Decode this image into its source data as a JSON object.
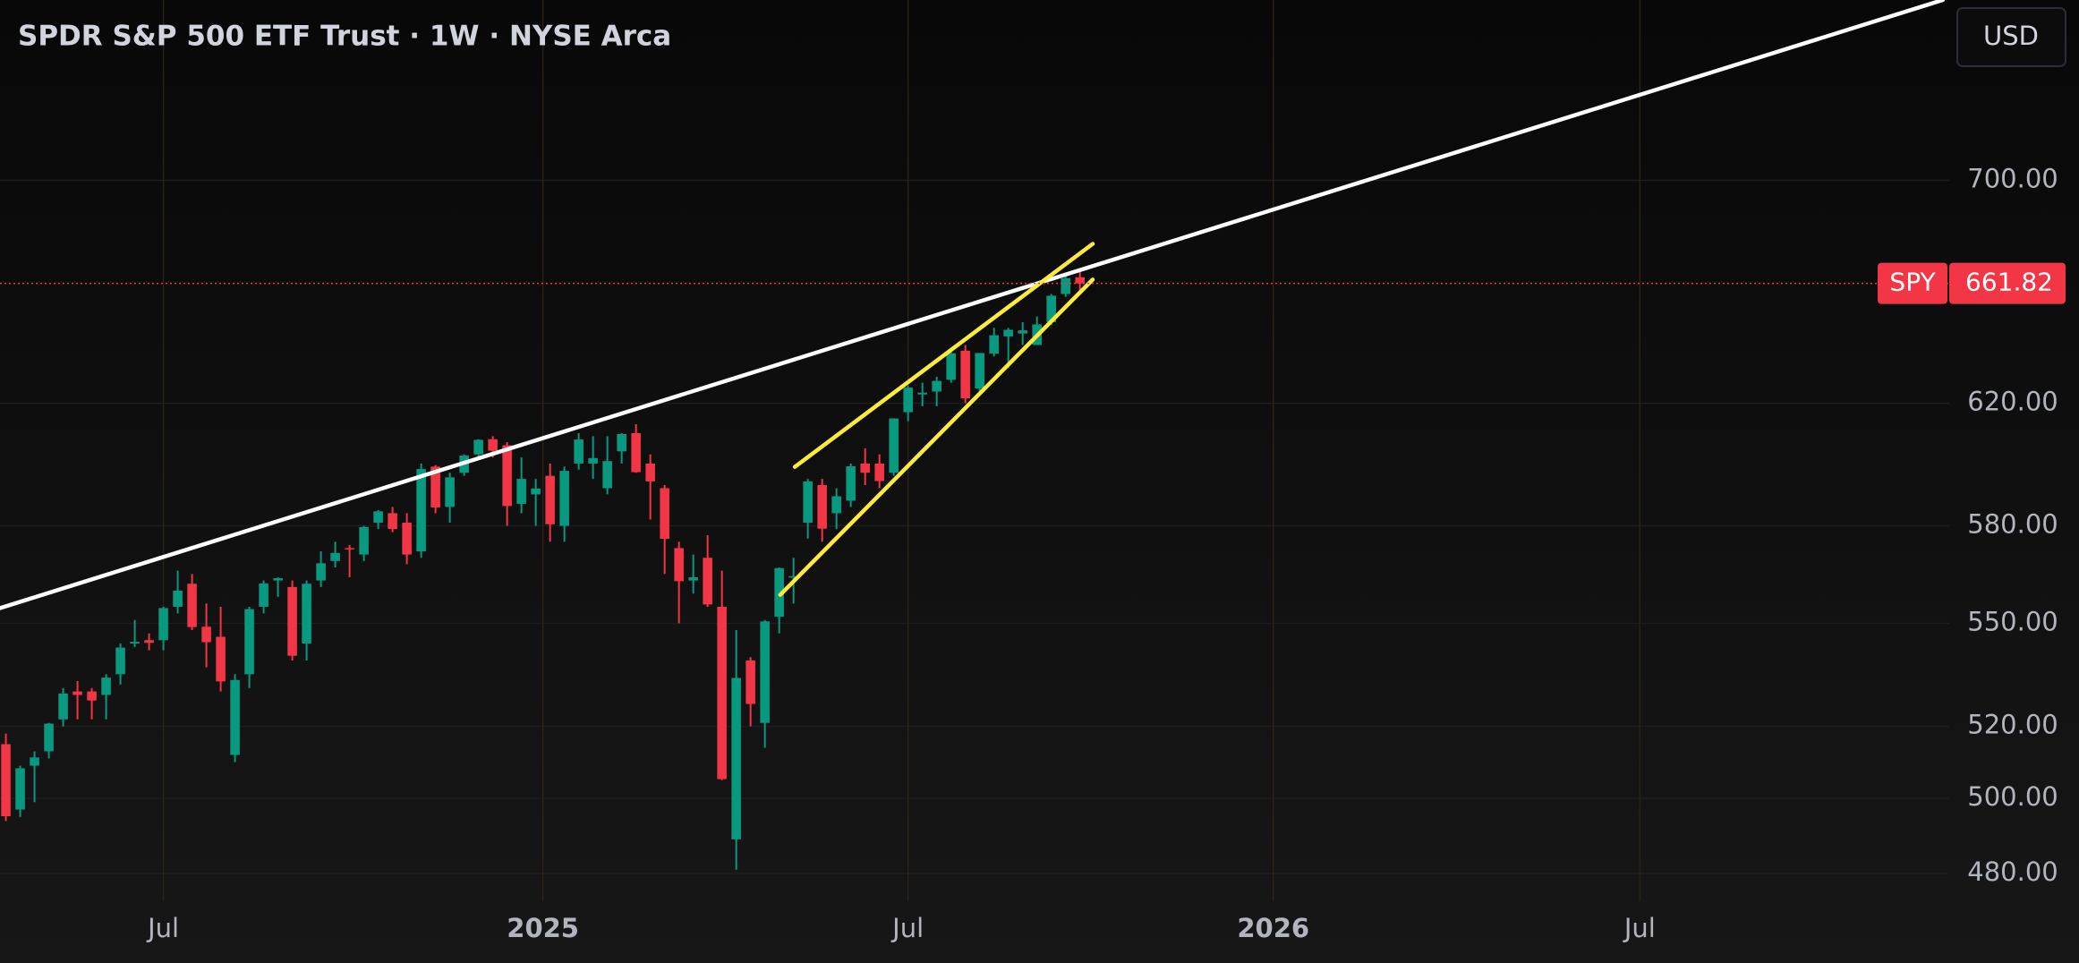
{
  "chart_data": {
    "type": "candlestick",
    "title": "SPDR S&P 500 ETF Trust · 1W · NYSE Arca",
    "currency": "USD",
    "log_scale": true,
    "grid": true,
    "colors": {
      "up": "#089981",
      "down": "#f23645"
    },
    "open": [
      515,
      497,
      509,
      513,
      522,
      530,
      530,
      529,
      535,
      544,
      545,
      545,
      555,
      562,
      549,
      546,
      512,
      535,
      555,
      563,
      561,
      544,
      563,
      569,
      573,
      571,
      581,
      584,
      581,
      572,
      599,
      586,
      597,
      603,
      608,
      606,
      587,
      590,
      596,
      580,
      600,
      600,
      592,
      604,
      610,
      600,
      592,
      573,
      563,
      570,
      555,
      489,
      539,
      521,
      552,
      564,
      581,
      593,
      584,
      588,
      600,
      600,
      597,
      617,
      623,
      624,
      628,
      638,
      625,
      637,
      643,
      644,
      640,
      648,
      658,
      664
    ],
    "high": [
      518,
      509,
      513,
      521,
      531,
      533,
      531,
      535,
      544,
      551,
      547,
      555,
      566,
      565,
      556,
      555,
      535,
      555,
      563,
      564,
      563,
      563,
      572,
      575,
      574,
      580,
      585,
      586,
      584,
      600,
      599.5,
      597,
      603,
      608,
      609,
      607,
      602,
      595,
      600,
      599,
      610,
      609,
      609,
      610,
      613,
      603,
      593,
      575,
      571,
      577,
      566,
      548,
      540,
      551,
      567,
      570,
      595,
      595,
      592,
      600,
      605,
      603,
      615,
      626,
      627,
      629,
      638,
      640,
      635,
      646,
      646,
      648,
      650,
      658,
      665,
      667
    ],
    "low": [
      493.9,
      495,
      499,
      511,
      520,
      522,
      522,
      522,
      532,
      543,
      542,
      542,
      553,
      548,
      537,
      530,
      510,
      531,
      553,
      558,
      539,
      539,
      561,
      567,
      564,
      569,
      579,
      578,
      568,
      570,
      584,
      581,
      596,
      602,
      602,
      580,
      584,
      580,
      575,
      575,
      598,
      595,
      590,
      600,
      597,
      582,
      565,
      550,
      559,
      555,
      505,
      481,
      520,
      514,
      547,
      556,
      576,
      575,
      579,
      586,
      593,
      592,
      596,
      614,
      619,
      619,
      627,
      620,
      623,
      636,
      632,
      640,
      640,
      647,
      657,
      658
    ],
    "close": [
      495.2,
      508.3,
      511.3,
      520.8,
      529.4,
      529.0,
      527.4,
      534.0,
      542.8,
      544.5,
      544.2,
      554.6,
      559.9,
      548.9,
      544.4,
      532.9,
      533.3,
      554.3,
      562.1,
      563.7,
      540.4,
      562.0,
      568.3,
      571.5,
      572.9,
      579.6,
      584.6,
      579.0,
      571.0,
      598.2,
      585.8,
      595.5,
      602.6,
      607.8,
      604.2,
      586.3,
      595.0,
      591.9,
      580.5,
      597.6,
      607.9,
      601.8,
      600.8,
      609.7,
      597.2,
      594.2,
      575.9,
      562.8,
      563.98,
      555.7,
      505.3,
      533.9,
      526.4,
      550.6,
      566.8,
      564.3,
      594.2,
      579.1,
      589.4,
      599.1,
      597.0,
      594.3,
      614.9,
      625.3,
      623.6,
      627.6,
      637.1,
      621.7,
      637.2,
      643.4,
      645.3,
      645.1,
      647.2,
      657.4,
      663.7,
      661.82
    ],
    "xlim": [
      -0.41,
      135.7
    ],
    "xticks": [
      {
        "value": 11,
        "label": "Jul"
      },
      {
        "value": 37.5,
        "label": "2025"
      },
      {
        "value": 63,
        "label": "Jul"
      },
      {
        "value": 88.5,
        "label": "2026"
      },
      {
        "value": 114.1,
        "label": "Jul"
      }
    ],
    "ylim": [
      472.8,
      772.2
    ],
    "yticks": [
      {
        "value": 480,
        "label": "480.00"
      },
      {
        "value": 500,
        "label": "500.00"
      },
      {
        "value": 520,
        "label": "520.00"
      },
      {
        "value": 550,
        "label": "550.00"
      },
      {
        "value": 580,
        "label": "580.00"
      },
      {
        "value": 620,
        "label": "620.00"
      },
      {
        "value": 700,
        "label": "700.00"
      }
    ],
    "lines": [
      {
        "color": "#ffffff",
        "x": [
          -0.41,
          135.25
        ],
        "y": [
          554.6,
          772.2
        ]
      },
      {
        "color": "#ffeb3b",
        "x": [
          55.09,
          75.89
        ],
        "y": [
          598.9,
          676.2
        ]
      },
      {
        "color": "#ffeb3b",
        "x": [
          54.07,
          75.89
        ],
        "y": [
          558.6,
          663.2
        ]
      }
    ],
    "last_price": {
      "symbol": "SPY",
      "value": 661.82,
      "color": "#f23645"
    }
  }
}
